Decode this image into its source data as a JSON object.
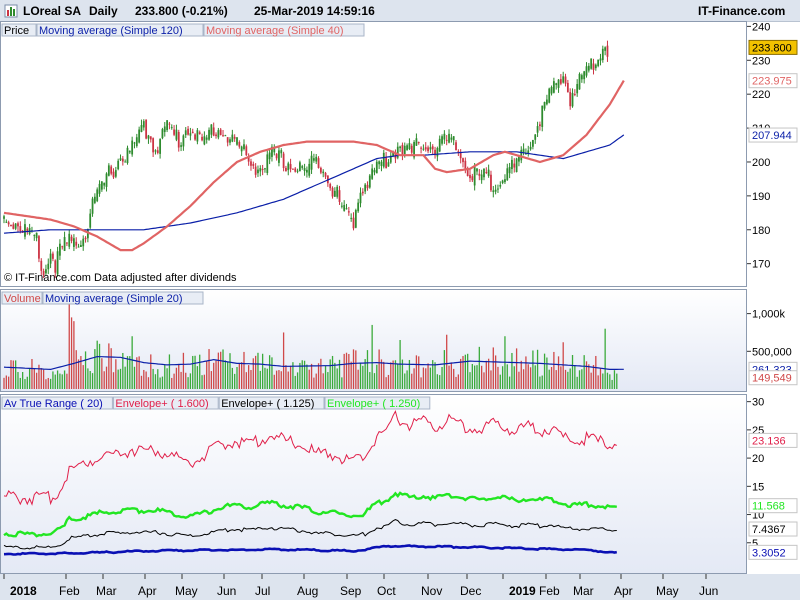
{
  "header": {
    "title": "LOreal SA",
    "period": "Daily",
    "price": "233.800 (-0.21%)",
    "datetime": "25-Mar-2019 14:59:16",
    "brand": "IT-Finance.com"
  },
  "colors": {
    "price_up": "#2e8b2e",
    "price_down": "#cc3344",
    "ma120": "#0a1fa8",
    "ma40": "#e06464",
    "atr": "#e0204a",
    "env_1600": "#e0204a",
    "env_1125": "#000000",
    "env_1250": "#22e622",
    "atr_base": "#0a10b4",
    "volume_up": "#3aaa3a",
    "volume_down": "#d04848",
    "volume_ma": "#0a1fa8",
    "panel_bg": "#ffffff",
    "lower_bg_top": "#ffffff",
    "lower_bg_bottom": "#e4e9f5"
  },
  "chart_data": [
    {
      "type": "candlestick",
      "panel": "price",
      "legend": [
        "Price",
        "Moving average (Simple 120)",
        "Moving average (Simple 40)"
      ],
      "watermark": "© IT-Finance.com  Data adjusted after dividends",
      "ylim": [
        164,
        241
      ],
      "yticks": [
        170,
        180,
        190,
        200,
        210,
        220,
        230,
        240
      ],
      "last_labels": [
        "233.800",
        "223.975",
        "207.944"
      ],
      "x_months": [
        "2018",
        "Feb",
        "Mar",
        "Apr",
        "May",
        "Jun",
        "Jul",
        "Aug",
        "Sep",
        "Oct",
        "Nov",
        "Dec",
        "2019",
        "Feb",
        "Mar",
        "Apr",
        "May",
        "Jun"
      ],
      "close_anchors": [
        [
          0,
          185
        ],
        [
          5,
          184
        ],
        [
          10,
          181
        ],
        [
          14,
          178
        ],
        [
          15,
          172
        ],
        [
          18,
          170
        ],
        [
          20,
          175
        ],
        [
          22,
          172
        ],
        [
          26,
          177
        ],
        [
          30,
          178
        ],
        [
          33,
          179
        ],
        [
          36,
          183
        ],
        [
          38,
          190
        ],
        [
          40,
          191
        ],
        [
          45,
          198
        ],
        [
          50,
          203
        ],
        [
          55,
          205
        ],
        [
          60,
          212
        ],
        [
          65,
          206
        ],
        [
          70,
          212
        ],
        [
          75,
          208
        ],
        [
          80,
          213
        ],
        [
          85,
          206
        ],
        [
          90,
          212
        ],
        [
          95,
          210
        ],
        [
          100,
          207
        ],
        [
          105,
          202
        ],
        [
          110,
          200
        ],
        [
          115,
          203
        ],
        [
          120,
          202
        ],
        [
          125,
          200
        ],
        [
          130,
          199
        ],
        [
          135,
          203
        ],
        [
          140,
          196
        ],
        [
          145,
          188
        ],
        [
          150,
          184
        ],
        [
          153,
          195
        ],
        [
          155,
          195
        ],
        [
          160,
          200
        ],
        [
          165,
          203
        ],
        [
          170,
          207
        ],
        [
          175,
          204
        ],
        [
          180,
          208
        ],
        [
          185,
          206
        ],
        [
          190,
          208
        ],
        [
          195,
          205
        ],
        [
          200,
          198
        ],
        [
          205,
          197
        ],
        [
          210,
          196
        ],
        [
          215,
          198
        ],
        [
          220,
          200
        ],
        [
          223,
          203
        ],
        [
          226,
          208
        ],
        [
          229,
          213
        ],
        [
          232,
          218
        ],
        [
          235,
          222
        ],
        [
          240,
          227
        ],
        [
          243,
          221
        ],
        [
          246,
          224
        ],
        [
          250,
          229
        ],
        [
          254,
          232
        ],
        [
          257,
          237
        ],
        [
          259,
          234
        ]
      ],
      "ma40": [
        [
          0,
          185
        ],
        [
          20,
          183
        ],
        [
          30,
          181
        ],
        [
          40,
          178
        ],
        [
          50,
          174
        ],
        [
          55,
          174
        ],
        [
          60,
          176
        ],
        [
          70,
          181
        ],
        [
          80,
          187
        ],
        [
          90,
          194
        ],
        [
          100,
          200
        ],
        [
          110,
          203
        ],
        [
          120,
          205
        ],
        [
          130,
          206
        ],
        [
          140,
          206
        ],
        [
          150,
          206
        ],
        [
          160,
          205
        ],
        [
          170,
          202
        ],
        [
          180,
          202
        ],
        [
          185,
          198
        ],
        [
          190,
          197
        ],
        [
          200,
          198
        ],
        [
          210,
          202
        ],
        [
          215,
          203
        ],
        [
          220,
          202
        ],
        [
          230,
          200
        ],
        [
          240,
          202
        ],
        [
          250,
          208
        ],
        [
          260,
          217
        ],
        [
          266,
          224
        ]
      ],
      "ma120": [
        [
          0,
          179
        ],
        [
          20,
          180
        ],
        [
          40,
          180
        ],
        [
          60,
          180
        ],
        [
          80,
          182
        ],
        [
          100,
          185
        ],
        [
          120,
          189
        ],
        [
          140,
          195
        ],
        [
          160,
          201
        ],
        [
          170,
          202
        ],
        [
          180,
          202
        ],
        [
          200,
          203
        ],
        [
          220,
          203
        ],
        [
          230,
          202
        ],
        [
          240,
          201
        ],
        [
          250,
          203
        ],
        [
          260,
          205
        ],
        [
          266,
          208
        ]
      ]
    },
    {
      "type": "bar",
      "panel": "volume",
      "legend": [
        "Volume",
        "Moving average (Simple 20)"
      ],
      "ylim": [
        0,
        1300000
      ],
      "yticks": [
        "500,000",
        "1,000k"
      ],
      "ytick_values": [
        500000,
        1000000
      ],
      "last_labels": [
        "261,323",
        "149,549"
      ],
      "volume_ma": [
        [
          0,
          290000
        ],
        [
          20,
          260000
        ],
        [
          30,
          340000
        ],
        [
          40,
          430000
        ],
        [
          50,
          420000
        ],
        [
          60,
          350000
        ],
        [
          70,
          320000
        ],
        [
          80,
          330000
        ],
        [
          90,
          390000
        ],
        [
          100,
          340000
        ],
        [
          110,
          330000
        ],
        [
          120,
          300000
        ],
        [
          140,
          310000
        ],
        [
          150,
          340000
        ],
        [
          160,
          350000
        ],
        [
          170,
          330000
        ],
        [
          185,
          320000
        ],
        [
          200,
          370000
        ],
        [
          210,
          360000
        ],
        [
          230,
          340000
        ],
        [
          240,
          320000
        ],
        [
          250,
          300000
        ],
        [
          260,
          260000
        ],
        [
          266,
          261323
        ]
      ],
      "spikes": [
        [
          28,
          1200000
        ],
        [
          29,
          950000
        ],
        [
          30,
          900000
        ],
        [
          55,
          700000
        ],
        [
          120,
          750000
        ],
        [
          158,
          850000
        ],
        [
          170,
          650000
        ],
        [
          190,
          720000
        ],
        [
          215,
          700000
        ],
        [
          240,
          620000
        ],
        [
          258,
          800000
        ]
      ]
    },
    {
      "type": "line",
      "panel": "atr",
      "legend": [
        "Av True Range ( 20)",
        "Envelope+ ( 1.600)",
        "Envelope+ ( 1.125)",
        "Envelope+ ( 1.250)"
      ],
      "ylim": [
        0,
        31
      ],
      "yticks": [
        5,
        10,
        15,
        20,
        25,
        30
      ],
      "last_labels": [
        "23.136",
        "11.568",
        "7.4367",
        "3.3052"
      ],
      "atr": [
        [
          0,
          5.5
        ],
        [
          10,
          5.4
        ],
        [
          20,
          5.4
        ],
        [
          25,
          6.2
        ],
        [
          28,
          7.5
        ],
        [
          32,
          7.6
        ],
        [
          36,
          8.0
        ],
        [
          40,
          8.3
        ],
        [
          45,
          8.6
        ],
        [
          50,
          8.5
        ],
        [
          55,
          8.9
        ],
        [
          60,
          8.7
        ],
        [
          65,
          8.8
        ],
        [
          70,
          8.5
        ],
        [
          75,
          8.2
        ],
        [
          80,
          8.0
        ],
        [
          85,
          8.3
        ],
        [
          90,
          8.8
        ],
        [
          95,
          9.3
        ],
        [
          100,
          9.5
        ],
        [
          105,
          9.2
        ],
        [
          110,
          9.6
        ],
        [
          115,
          9.8
        ],
        [
          120,
          9.5
        ],
        [
          125,
          9.3
        ],
        [
          130,
          9.0
        ],
        [
          135,
          8.5
        ],
        [
          140,
          8.6
        ],
        [
          145,
          8.2
        ],
        [
          150,
          8.0
        ],
        [
          155,
          8.4
        ],
        [
          160,
          9.8
        ],
        [
          165,
          10.3
        ],
        [
          168,
          11.2
        ],
        [
          170,
          10.9
        ],
        [
          175,
          10.6
        ],
        [
          180,
          10.8
        ],
        [
          185,
          10.5
        ],
        [
          190,
          10.9
        ],
        [
          195,
          10.7
        ],
        [
          200,
          10.4
        ],
        [
          205,
          10.3
        ],
        [
          210,
          10.7
        ],
        [
          215,
          10.5
        ],
        [
          220,
          10.1
        ],
        [
          225,
          10.5
        ],
        [
          230,
          10.2
        ],
        [
          235,
          10.4
        ],
        [
          240,
          9.7
        ],
        [
          245,
          9.5
        ],
        [
          250,
          9.6
        ],
        [
          255,
          9.4
        ],
        [
          260,
          9.3
        ],
        [
          263,
          9.25
        ]
      ],
      "base_line": [
        [
          0,
          3.1
        ],
        [
          30,
          3.2
        ],
        [
          60,
          3.6
        ],
        [
          90,
          3.8
        ],
        [
          120,
          3.9
        ],
        [
          150,
          3.6
        ],
        [
          165,
          4.5
        ],
        [
          200,
          4.3
        ],
        [
          230,
          4.0
        ],
        [
          250,
          3.8
        ],
        [
          263,
          3.3
        ]
      ]
    }
  ]
}
